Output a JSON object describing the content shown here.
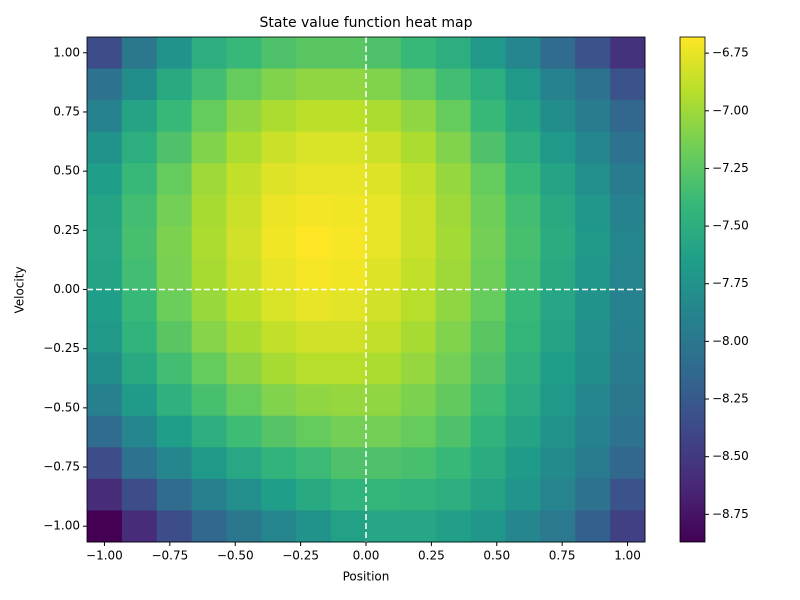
{
  "chart_data": {
    "type": "heatmap",
    "title": "State value function heat map",
    "x_label": "Position",
    "y_label": "Velocity",
    "colormap": "viridis",
    "x": [
      -1,
      -0.8667,
      -0.7333,
      -0.6,
      -0.4667,
      -0.3333,
      -0.2,
      -0.0667,
      0.0667,
      0.2,
      0.3333,
      0.4667,
      0.6,
      0.7333,
      0.8667,
      1
    ],
    "y": [
      1,
      0.8667,
      0.7333,
      0.6,
      0.4667,
      0.3333,
      0.2,
      0.0667,
      -0.0667,
      -0.2,
      -0.3333,
      -0.4667,
      -0.6,
      -0.7333,
      -0.8667,
      -1
    ],
    "z": [
      [
        -8.35,
        -8.0,
        -7.75,
        -7.5,
        -7.4,
        -7.3,
        -7.25,
        -7.25,
        -7.3,
        -7.4,
        -7.5,
        -7.7,
        -7.85,
        -8.1,
        -8.3,
        -8.55
      ],
      [
        -8.05,
        -7.8,
        -7.55,
        -7.35,
        -7.2,
        -7.1,
        -7.05,
        -7.05,
        -7.1,
        -7.2,
        -7.35,
        -7.5,
        -7.7,
        -7.9,
        -8.05,
        -8.3
      ],
      [
        -7.9,
        -7.6,
        -7.4,
        -7.2,
        -7.05,
        -6.95,
        -6.9,
        -6.9,
        -6.95,
        -7.05,
        -7.2,
        -7.4,
        -7.6,
        -7.8,
        -7.95,
        -8.15
      ],
      [
        -7.75,
        -7.5,
        -7.3,
        -7.1,
        -6.95,
        -6.85,
        -6.8,
        -6.8,
        -6.85,
        -6.95,
        -7.1,
        -7.3,
        -7.5,
        -7.7,
        -7.85,
        -8.05
      ],
      [
        -7.65,
        -7.4,
        -7.2,
        -7.0,
        -6.88,
        -6.78,
        -6.75,
        -6.75,
        -6.78,
        -6.88,
        -7.03,
        -7.2,
        -7.4,
        -7.6,
        -7.78,
        -7.95
      ],
      [
        -7.6,
        -7.35,
        -7.15,
        -6.97,
        -6.85,
        -6.74,
        -6.71,
        -6.72,
        -6.75,
        -6.85,
        -7.0,
        -7.17,
        -7.35,
        -7.55,
        -7.72,
        -7.9
      ],
      [
        -7.58,
        -7.33,
        -7.12,
        -6.95,
        -6.83,
        -6.72,
        -6.68,
        -6.7,
        -6.75,
        -6.85,
        -6.98,
        -7.15,
        -7.33,
        -7.52,
        -7.7,
        -7.87
      ],
      [
        -7.6,
        -7.35,
        -7.13,
        -6.97,
        -6.85,
        -6.75,
        -6.7,
        -6.72,
        -6.78,
        -6.88,
        -7.0,
        -7.17,
        -7.35,
        -7.55,
        -7.72,
        -7.88
      ],
      [
        -7.65,
        -7.4,
        -7.18,
        -7.02,
        -6.9,
        -6.8,
        -6.75,
        -6.77,
        -6.83,
        -6.92,
        -7.05,
        -7.2,
        -7.4,
        -7.58,
        -7.75,
        -7.9
      ],
      [
        -7.7,
        -7.45,
        -7.25,
        -7.08,
        -6.97,
        -6.88,
        -6.83,
        -6.83,
        -6.88,
        -6.97,
        -7.1,
        -7.25,
        -7.43,
        -7.6,
        -7.78,
        -7.92
      ],
      [
        -7.8,
        -7.55,
        -7.35,
        -7.2,
        -7.07,
        -6.97,
        -6.92,
        -6.92,
        -6.95,
        -7.03,
        -7.15,
        -7.3,
        -7.48,
        -7.65,
        -7.8,
        -7.95
      ],
      [
        -7.92,
        -7.68,
        -7.48,
        -7.33,
        -7.2,
        -7.1,
        -7.05,
        -7.03,
        -7.05,
        -7.12,
        -7.22,
        -7.37,
        -7.53,
        -7.7,
        -7.85,
        -8.0
      ],
      [
        -8.1,
        -7.85,
        -7.65,
        -7.5,
        -7.37,
        -7.27,
        -7.2,
        -7.15,
        -7.15,
        -7.2,
        -7.3,
        -7.45,
        -7.6,
        -7.75,
        -7.9,
        -8.05
      ],
      [
        -8.35,
        -8.05,
        -7.85,
        -7.7,
        -7.57,
        -7.45,
        -7.38,
        -7.3,
        -7.3,
        -7.33,
        -7.4,
        -7.52,
        -7.67,
        -7.82,
        -7.97,
        -8.15
      ],
      [
        -8.6,
        -8.35,
        -8.1,
        -7.92,
        -7.78,
        -7.65,
        -7.55,
        -7.45,
        -7.43,
        -7.45,
        -7.5,
        -7.6,
        -7.73,
        -7.88,
        -8.05,
        -8.3
      ],
      [
        -8.87,
        -8.6,
        -8.35,
        -8.15,
        -8.0,
        -7.87,
        -7.75,
        -7.62,
        -7.58,
        -7.58,
        -7.63,
        -7.72,
        -7.85,
        -7.98,
        -8.2,
        -8.45
      ]
    ],
    "xlim": [
      -1.0667,
      1.0667
    ],
    "ylim": [
      -1.0667,
      1.0667
    ],
    "xticks": [
      {
        "value": -1,
        "label": "−1.00"
      },
      {
        "value": -0.75,
        "label": "−0.75"
      },
      {
        "value": -0.5,
        "label": "−0.50"
      },
      {
        "value": -0.25,
        "label": "−0.25"
      },
      {
        "value": 0,
        "label": "0.00"
      },
      {
        "value": 0.25,
        "label": "0.25"
      },
      {
        "value": 0.5,
        "label": "0.50"
      },
      {
        "value": 0.75,
        "label": "0.75"
      },
      {
        "value": 1,
        "label": "1.00"
      }
    ],
    "yticks": [
      {
        "value": -1,
        "label": "−1.00"
      },
      {
        "value": -0.75,
        "label": "−0.75"
      },
      {
        "value": -0.5,
        "label": "−0.50"
      },
      {
        "value": -0.25,
        "label": "−0.25"
      },
      {
        "value": 0,
        "label": "0.00"
      },
      {
        "value": 0.25,
        "label": "0.25"
      },
      {
        "value": 0.5,
        "label": "0.50"
      },
      {
        "value": 0.75,
        "label": "0.75"
      },
      {
        "value": 1,
        "label": "1.00"
      }
    ],
    "clim": [
      -8.87,
      -6.68
    ],
    "cticks": [
      {
        "value": -8.75,
        "label": "−8.75"
      },
      {
        "value": -8.5,
        "label": "−8.50"
      },
      {
        "value": -8.25,
        "label": "−8.25"
      },
      {
        "value": -8,
        "label": "−8.00"
      },
      {
        "value": -7.75,
        "label": "−7.75"
      },
      {
        "value": -7.5,
        "label": "−7.50"
      },
      {
        "value": -7.25,
        "label": "−7.25"
      },
      {
        "value": -7,
        "label": "−7.00"
      },
      {
        "value": -6.75,
        "label": "−6.75"
      }
    ],
    "vline": 0,
    "hline": 0,
    "line_color": "#ffffff"
  }
}
